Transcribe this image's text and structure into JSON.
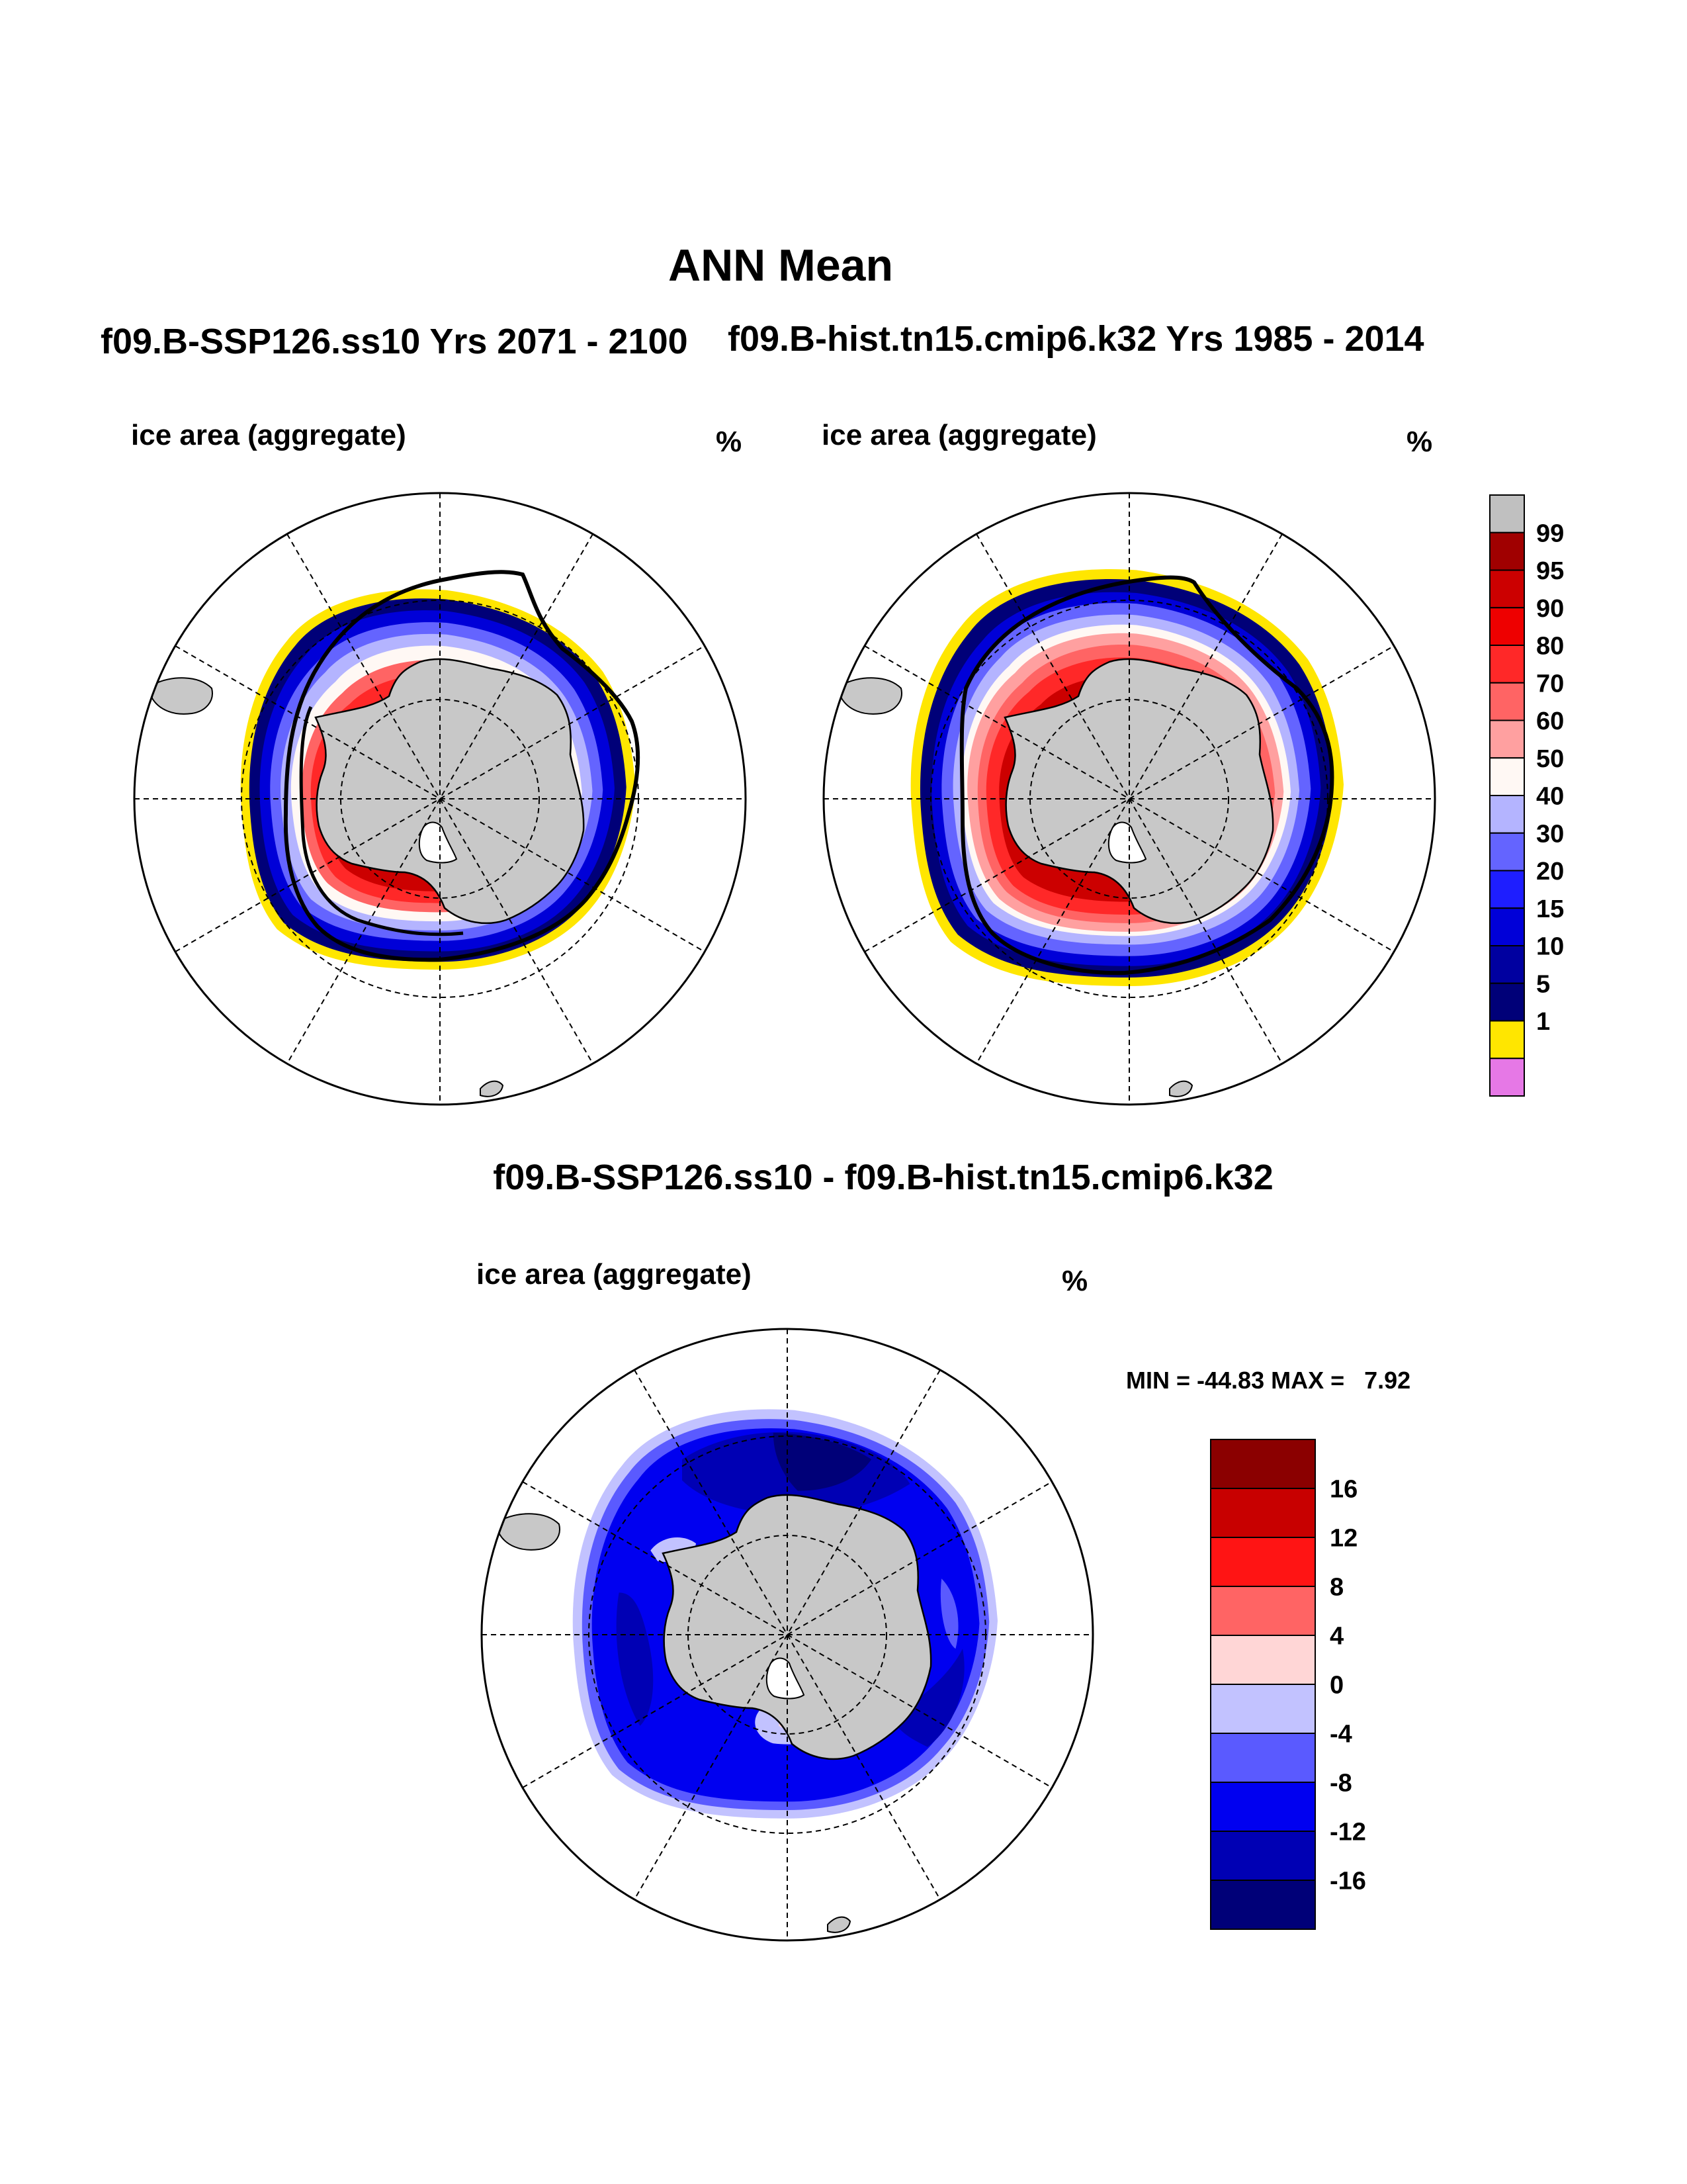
{
  "main_title": "ANN Mean",
  "panels": [
    {
      "id": "left",
      "title": "f09.B-SSP126.ss10  Yrs 2071 - 2100",
      "subtitle": "ice area  (aggregate)",
      "units": "%"
    },
    {
      "id": "right",
      "title": "f09.B-hist.tn15.cmip6.k32  Yrs 1985 - 2014",
      "subtitle": "ice area  (aggregate)",
      "units": "%"
    },
    {
      "id": "diff",
      "title": "f09.B-SSP126.ss10 - f09.B-hist.tn15.cmip6.k32",
      "subtitle": "ice area  (aggregate)",
      "units": "%",
      "minmax": "MIN = -44.83 MAX =   7.92"
    }
  ],
  "chart_data": [
    {
      "type": "heatmap",
      "projection": "south-polar-stereographic",
      "title": "f09.B-SSP126.ss10  Yrs 2071 - 2100",
      "variable": "ice area  (aggregate)",
      "units": "%"
    },
    {
      "type": "heatmap",
      "projection": "south-polar-stereographic",
      "title": "f09.B-hist.tn15.cmip6.k32  Yrs 1985 - 2014",
      "variable": "ice area  (aggregate)",
      "units": "%"
    },
    {
      "type": "heatmap",
      "projection": "south-polar-stereographic",
      "title": "f09.B-SSP126.ss10 - f09.B-hist.tn15.cmip6.k32",
      "variable": "ice area  (aggregate)",
      "units": "%",
      "min": -44.83,
      "max": 7.92
    }
  ],
  "colorbars": {
    "abs": {
      "labels": [
        "99",
        "95",
        "90",
        "80",
        "70",
        "60",
        "50",
        "40",
        "30",
        "20",
        "15",
        "10",
        "5",
        "1"
      ],
      "colors": [
        "#c0c0c0",
        "#a00000",
        "#cc0000",
        "#ee0000",
        "#ff2828",
        "#ff6464",
        "#ffa0a0",
        "#fff8f4",
        "#b4b4ff",
        "#6464ff",
        "#1e1eff",
        "#0000d8",
        "#0000a0",
        "#000078",
        "#ffe600",
        "#e678e6"
      ]
    },
    "diff": {
      "labels": [
        "16",
        "12",
        "8",
        "4",
        "0",
        "-4",
        "-8",
        "-12",
        "-16"
      ],
      "colors": [
        "#8b0000",
        "#c80000",
        "#ff1414",
        "#ff6464",
        "#ffd6d6",
        "#c2c2ff",
        "#5a5aff",
        "#0000f0",
        "#0000b4",
        "#000078"
      ]
    }
  },
  "colors": {
    "land": "#c8c8c8",
    "ocean": "#ffffff",
    "outline": "#000000"
  }
}
